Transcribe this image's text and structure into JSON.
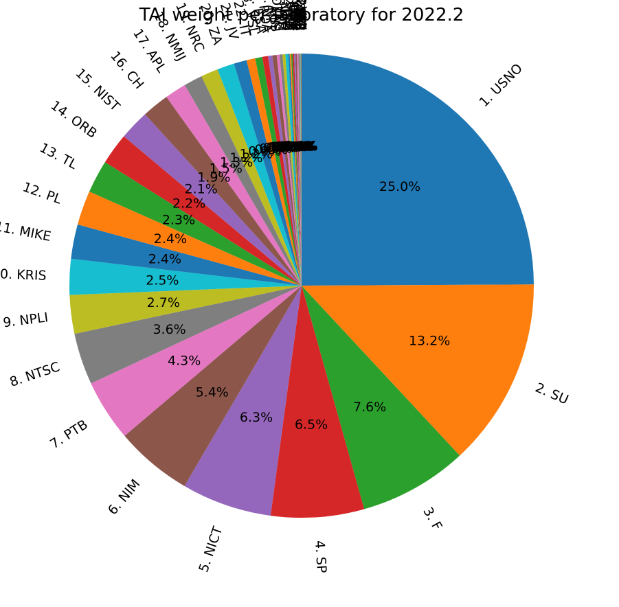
{
  "chart_data": {
    "type": "pie",
    "title": "TAI weight per laboratory for 2022.2",
    "start_angle_deg": 90,
    "direction": "clockwise",
    "slices": [
      {
        "label": "1. USNO",
        "value": 25.0,
        "pct": "25.0%",
        "color": "#1f77b4"
      },
      {
        "label": "2. SU",
        "value": 13.2,
        "pct": "13.2%",
        "color": "#ff7f0e"
      },
      {
        "label": "3. F",
        "value": 7.6,
        "pct": "7.6%",
        "color": "#2ca02c"
      },
      {
        "label": "4. SP",
        "value": 6.5,
        "pct": "6.5%",
        "color": "#d62728"
      },
      {
        "label": "5. NICT",
        "value": 6.3,
        "pct": "6.3%",
        "color": "#9467bd"
      },
      {
        "label": "6. NIM",
        "value": 5.4,
        "pct": "5.4%",
        "color": "#8c564b"
      },
      {
        "label": "7. PTB",
        "value": 4.3,
        "pct": "4.3%",
        "color": "#e377c2"
      },
      {
        "label": "8. NTSC",
        "value": 3.6,
        "pct": "3.6%",
        "color": "#7f7f7f"
      },
      {
        "label": "9. NPLI",
        "value": 2.7,
        "pct": "2.7%",
        "color": "#bcbd22"
      },
      {
        "label": "10. KRIS",
        "value": 2.5,
        "pct": "2.5%",
        "color": "#17becf"
      },
      {
        "label": "11. MIKE",
        "value": 2.4,
        "pct": "2.4%",
        "color": "#1f77b4"
      },
      {
        "label": "12. PL",
        "value": 2.4,
        "pct": "2.4%",
        "color": "#ff7f0e"
      },
      {
        "label": "13. TL",
        "value": 2.3,
        "pct": "2.3%",
        "color": "#2ca02c"
      },
      {
        "label": "14. ORB",
        "value": 2.2,
        "pct": "2.2%",
        "color": "#d62728"
      },
      {
        "label": "15. NIST",
        "value": 2.1,
        "pct": "2.1%",
        "color": "#9467bd"
      },
      {
        "label": "16. CH",
        "value": 1.9,
        "pct": "1.9%",
        "color": "#8c564b"
      },
      {
        "label": "17. APL",
        "value": 1.5,
        "pct": "1.5%",
        "color": "#e377c2"
      },
      {
        "label": "18. NMIJ",
        "value": 1.3,
        "pct": "1.3%",
        "color": "#7f7f7f"
      },
      {
        "label": "19. NRC",
        "value": 1.2,
        "pct": "1.2%",
        "color": "#bcbd22"
      },
      {
        "label": "20. ZA",
        "value": 1.2,
        "pct": "1.2%",
        "color": "#17becf"
      },
      {
        "label": "21. JV",
        "value": 0.9,
        "pct": "0.9%",
        "color": "#1f77b4"
      },
      {
        "label": "22. IT",
        "value": 0.6,
        "pct": "0.6%",
        "color": "#ff7f0e"
      },
      {
        "label": "23. VSL",
        "value": 0.5,
        "pct": "0.5%",
        "color": "#2ca02c"
      },
      {
        "label": "24. ESA",
        "value": 0.4,
        "pct": "0.4%",
        "color": "#d62728"
      },
      {
        "label": "25. ROA",
        "value": 0.3,
        "pct": "0.3%",
        "color": "#9467bd"
      },
      {
        "label": "26. NPL",
        "value": 0.3,
        "pct": "0.3%",
        "color": "#8c564b"
      },
      {
        "label": "27. AUS",
        "value": 0.2,
        "pct": "0.2%",
        "color": "#e377c2"
      },
      {
        "label": "28. DTAG",
        "value": 0.2,
        "pct": "0.2%",
        "color": "#7f7f7f"
      },
      {
        "label": "29. INTI",
        "value": 0.2,
        "pct": "0.2%",
        "color": "#bcbd22"
      },
      {
        "label": "30. NAO",
        "value": 0.2,
        "pct": "0.2%",
        "color": "#17becf"
      },
      {
        "label": "31. IPQ",
        "value": 0.1,
        "pct": "0.1%",
        "color": "#1f77b4"
      },
      {
        "label": "32. KZ",
        "value": 0.1,
        "pct": "0.1%",
        "color": "#ff7f0e"
      },
      {
        "label": "33. SMD",
        "value": 0.1,
        "pct": "0.1%",
        "color": "#2ca02c"
      },
      {
        "label": "34. UME",
        "value": 0.1,
        "pct": "0.1%",
        "color": "#d62728"
      },
      {
        "label": "35. BEV",
        "value": 0.1,
        "pct": "0.1%",
        "color": "#9467bd"
      },
      {
        "label": "36. CAO",
        "value": 0.1,
        "pct": "0.1%",
        "color": "#8c564b"
      },
      {
        "label": "37. MSL",
        "value": 0.1,
        "pct": "0.1%",
        "color": "#e377c2"
      },
      {
        "label": "38. NIS",
        "value": 0.1,
        "pct": "0.1%",
        "color": "#7f7f7f"
      },
      {
        "label": "39. PTB2",
        "value": 0.0,
        "pct": "0.0%",
        "color": "#bcbd22"
      },
      {
        "label": "40. SCL",
        "value": 0.0,
        "pct": "0.0%",
        "color": "#17becf"
      },
      {
        "label": "41. SIQ",
        "value": 0.0,
        "pct": "0.0%",
        "color": "#1f77b4"
      },
      {
        "label": "42. TP",
        "value": 0.0,
        "pct": "0.0%",
        "color": "#ff7f0e"
      },
      {
        "label": "43. UA",
        "value": 0.0,
        "pct": "0.0%",
        "color": "#2ca02c"
      },
      {
        "label": "44. VMI",
        "value": 0.0,
        "pct": "0.0%",
        "color": "#d62728"
      }
    ]
  }
}
